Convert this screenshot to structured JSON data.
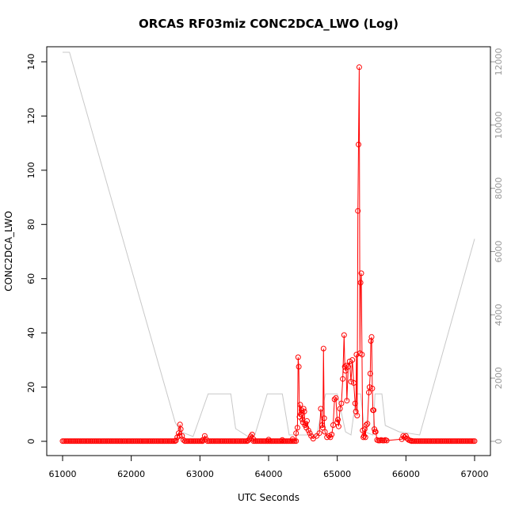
{
  "chart_data": {
    "type": "line",
    "title": "ORCAS RF03miz CONC2DCA_LWO (Log)",
    "xlabel": "UTC Seconds",
    "ylabel": "CONC2DCA_LWO",
    "xlim": [
      61000,
      67000
    ],
    "ylim": [
      0,
      140
    ],
    "y2lim": [
      0,
      12000
    ],
    "x_ticks": [
      "61000",
      "62000",
      "63000",
      "64000",
      "65000",
      "66000",
      "67000"
    ],
    "y_ticks": [
      "0",
      "20",
      "40",
      "60",
      "80",
      "100",
      "120",
      "140"
    ],
    "y2_ticks": [
      "0",
      "2000",
      "4000",
      "6000",
      "8000",
      "10000",
      "12000"
    ],
    "grid": false,
    "colors": {
      "primary": "#ff0000",
      "secondary": "#c8c8c8",
      "right_axis": "#999999"
    },
    "series": [
      {
        "role": "primary",
        "marker": "circle",
        "baseline_ranges": [
          [
            61000,
            62650
          ],
          [
            62780,
            63040
          ],
          [
            63110,
            63700
          ],
          [
            63780,
            64400
          ],
          [
            66080,
            67000
          ]
        ],
        "x": [
          62650,
          62670,
          62690,
          62700,
          62710,
          62720,
          62740,
          62760,
          63040,
          63070,
          63090,
          63700,
          63720,
          63740,
          63760,
          63780,
          64000,
          64200,
          64350,
          64400,
          64420,
          64430,
          64440,
          64450,
          64460,
          64470,
          64480,
          64490,
          64500,
          64510,
          64520,
          64530,
          64540,
          64550,
          64560,
          64580,
          64600,
          64620,
          64650,
          64700,
          64740,
          64760,
          64780,
          64790,
          64800,
          64810,
          64820,
          64850,
          64880,
          64900,
          64920,
          64940,
          64960,
          64980,
          65000,
          65010,
          65020,
          65040,
          65060,
          65080,
          65100,
          65110,
          65120,
          65130,
          65140,
          65160,
          65180,
          65200,
          65220,
          65240,
          65260,
          65270,
          65280,
          65290,
          65300,
          65310,
          65320,
          65330,
          65340,
          65350,
          65360,
          65370,
          65380,
          65390,
          65400,
          65410,
          65420,
          65440,
          65460,
          65470,
          65480,
          65490,
          65500,
          65510,
          65520,
          65530,
          65540,
          65550,
          65560,
          65580,
          65600,
          65620,
          65640,
          65660,
          65680,
          65700,
          65720,
          65940,
          65960,
          65980,
          66000,
          66020,
          66040,
          66060,
          66080
        ],
        "y": [
          0.3,
          1.5,
          3.0,
          2.0,
          6.2,
          4.5,
          2.0,
          0.5,
          0.5,
          2.0,
          0.8,
          0.3,
          0.8,
          1.8,
          2.5,
          0.8,
          0.6,
          0.5,
          0.8,
          3.0,
          5.0,
          31.0,
          27.5,
          9.0,
          13.5,
          10.0,
          11.5,
          8.0,
          7.0,
          12.0,
          11.0,
          6.0,
          6.5,
          5.0,
          7.5,
          4.0,
          3.0,
          2.0,
          1.0,
          2.0,
          3.0,
          12.0,
          6.0,
          5.0,
          34.2,
          8.5,
          3.5,
          1.5,
          2.0,
          1.5,
          2.5,
          6.0,
          15.5,
          16.0,
          7.0,
          8.0,
          5.5,
          12.0,
          14.0,
          23.0,
          39.2,
          27.5,
          26.0,
          28.0,
          15.0,
          27.5,
          29.5,
          22.0,
          30.0,
          21.5,
          14.0,
          11.0,
          32.0,
          9.5,
          85.0,
          109.5,
          138.0,
          32.5,
          58.5,
          62.0,
          32.0,
          4.0,
          1.5,
          2.0,
          4.5,
          1.5,
          6.0,
          6.5,
          18.0,
          20.0,
          25.0,
          37.0,
          38.5,
          19.5,
          11.5,
          11.5,
          4.5,
          3.5,
          3.5,
          0.5,
          0.3,
          0.3,
          0.5,
          0.3,
          0.3,
          0.5,
          0.3,
          0.8,
          2.0,
          1.5,
          2.0,
          1.0,
          0.5,
          0.3,
          0.2
        ]
      },
      {
        "role": "secondary",
        "axis": "right",
        "x": [
          61000,
          61100,
          62640,
          62720,
          62900,
          63120,
          63200,
          63450,
          63520,
          63700,
          63800,
          63980,
          64200,
          64300,
          64400,
          64700,
          64830,
          65000,
          65120,
          65200,
          65280,
          65340,
          65400,
          65520,
          65550,
          65600,
          65650,
          65700,
          65900,
          66200,
          67000
        ],
        "y": [
          12300,
          12300,
          600,
          300,
          150,
          1500,
          1500,
          1500,
          400,
          150,
          200,
          1500,
          1500,
          200,
          200,
          200,
          1500,
          1500,
          300,
          200,
          1500,
          1500,
          300,
          200,
          1500,
          1500,
          1500,
          500,
          300,
          200,
          6400
        ]
      }
    ]
  }
}
